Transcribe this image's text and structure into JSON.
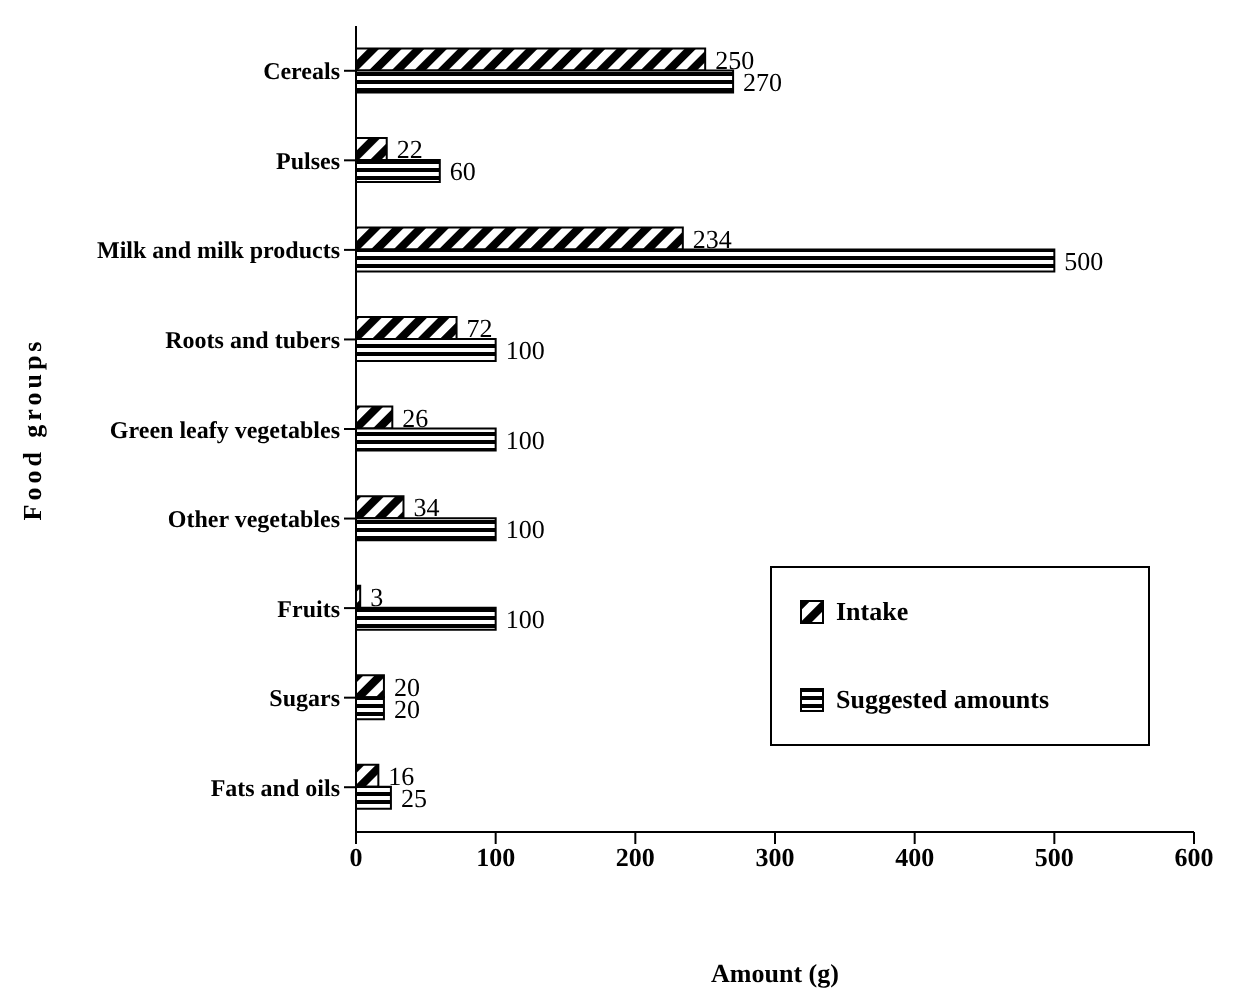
{
  "chart_data": {
    "type": "bar",
    "orientation": "horizontal",
    "xlabel": "Amount (g)",
    "ylabel": "Food groups",
    "categories": [
      "Cereals",
      "Pulses",
      "Milk and milk products",
      "Roots and tubers",
      "Green leafy vegetables",
      "Other vegetables",
      "Fruits",
      "Sugars",
      "Fats and oils"
    ],
    "series": [
      {
        "name": "Intake",
        "color": "#000000",
        "values": [
          250,
          22,
          234,
          72,
          26,
          34,
          3,
          20,
          16
        ]
      },
      {
        "name": "Suggested amounts",
        "color": "#000000",
        "values": [
          270,
          60,
          500,
          100,
          100,
          100,
          100,
          20,
          25
        ]
      }
    ],
    "xlim": [
      0,
      600
    ],
    "xticks": [
      0,
      100,
      200,
      300,
      400,
      500,
      600
    ],
    "data_labels": true,
    "legend": "bottom right",
    "grid": false
  }
}
